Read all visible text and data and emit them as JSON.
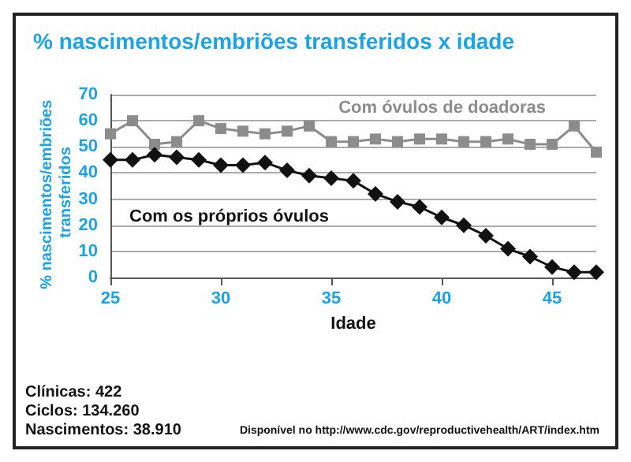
{
  "chart_data": {
    "type": "line",
    "title": "% nascimentos/embriões transferidos x idade",
    "xlabel": "Idade",
    "ylabel": "% nascimentos/embriões transferidos",
    "x": [
      25,
      26,
      27,
      28,
      29,
      30,
      31,
      32,
      33,
      34,
      35,
      36,
      37,
      38,
      39,
      40,
      41,
      42,
      43,
      44,
      45,
      46,
      47
    ],
    "series": [
      {
        "name": "Com óvulos de doadoras",
        "color": "#8c8c8c",
        "marker": "square",
        "values": [
          55,
          60,
          51,
          52,
          60,
          57,
          56,
          55,
          56,
          58,
          52,
          52,
          53,
          52,
          53,
          53,
          52,
          52,
          53,
          51,
          51,
          58,
          48
        ]
      },
      {
        "name": "Com os próprios óvulos",
        "color": "#111111",
        "marker": "diamond",
        "values": [
          45,
          45,
          47,
          46,
          45,
          43,
          43,
          44,
          41,
          39,
          38,
          37,
          32,
          29,
          27,
          23,
          20,
          16,
          11,
          8,
          4,
          2,
          2
        ]
      }
    ],
    "xlim": [
      25,
      47
    ],
    "xticks": [
      25,
      30,
      35,
      40,
      45
    ],
    "ylim": [
      0,
      70
    ],
    "yticks": [
      0,
      10,
      20,
      30,
      40,
      50,
      60,
      70
    ],
    "grid": "y",
    "legend": false,
    "annotations": [
      "Clínicas: 422",
      "Ciclos: 134.260",
      "Nascimentos: 38.910",
      "Disponível no http://www.cdc.gov/reproductivehealth/ART/index.htm"
    ]
  }
}
